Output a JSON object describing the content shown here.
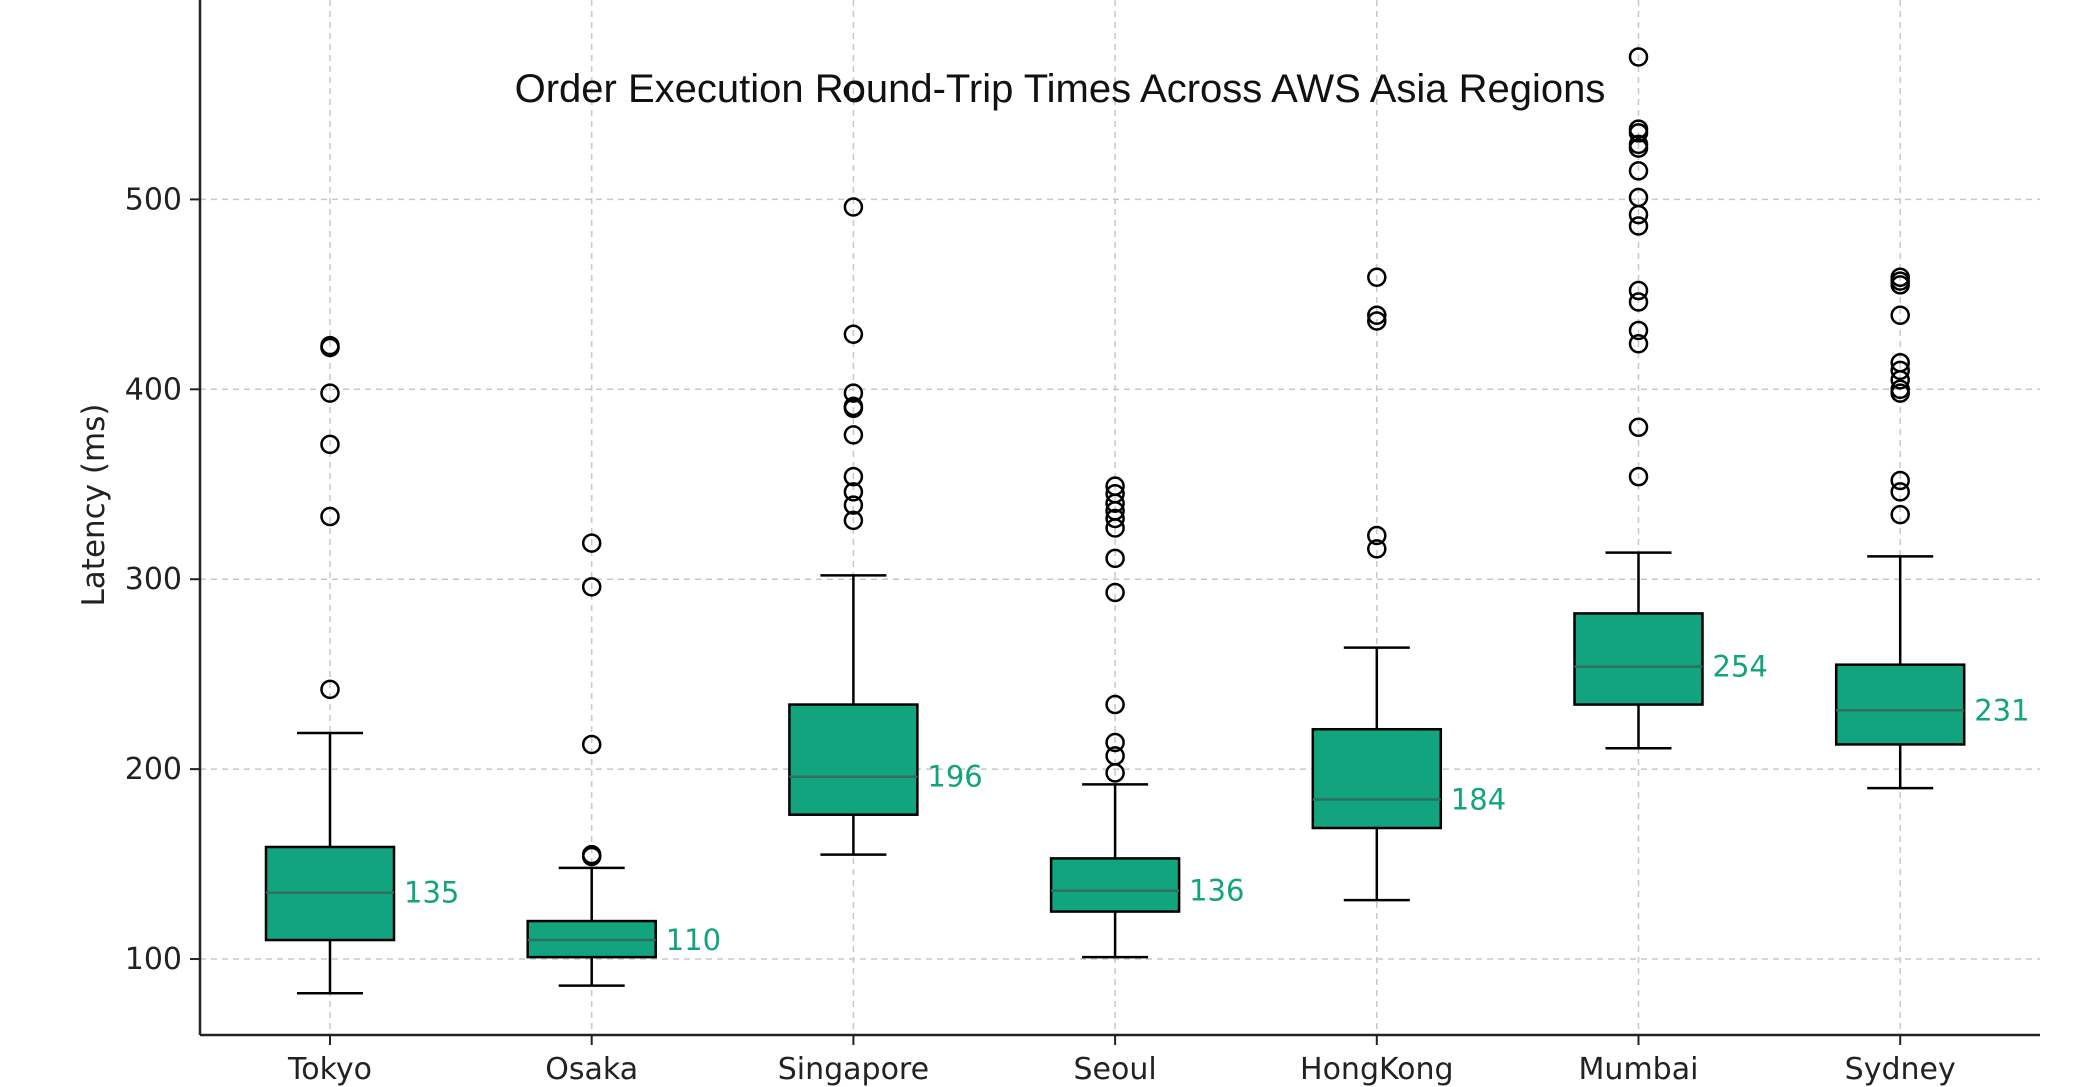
{
  "chart_data": {
    "type": "boxplot",
    "title": "Order Execution Round-Trip Times Across AWS Asia Regions",
    "xlabel": "",
    "ylabel": "Latency (ms)",
    "ylim": [
      60,
      605
    ],
    "yticks": [
      100,
      200,
      300,
      400,
      500
    ],
    "grid": true,
    "box_color": "#12a37f",
    "median_label_color": "#12a37f",
    "categories": [
      "Tokyo",
      "Osaka",
      "Singapore",
      "Seoul",
      "HongKong",
      "Mumbai",
      "Sydney"
    ],
    "series": [
      {
        "category": "Tokyo",
        "whisker_low": 82,
        "q1": 110,
        "median": 135,
        "q3": 159,
        "whisker_high": 219,
        "outliers": [
          242,
          333,
          371,
          398,
          422,
          423
        ]
      },
      {
        "category": "Osaka",
        "whisker_low": 86,
        "q1": 101,
        "median": 110,
        "q3": 120,
        "whisker_high": 148,
        "outliers": [
          154,
          155,
          213,
          296,
          319
        ]
      },
      {
        "category": "Singapore",
        "whisker_low": 155,
        "q1": 176,
        "median": 196,
        "q3": 234,
        "whisker_high": 302,
        "outliers": [
          331,
          339,
          346,
          354,
          376,
          390,
          391,
          398,
          429,
          496,
          557
        ]
      },
      {
        "category": "Seoul",
        "whisker_low": 101,
        "q1": 125,
        "median": 136,
        "q3": 153,
        "whisker_high": 192,
        "outliers": [
          198,
          207,
          214,
          234,
          293,
          311,
          327,
          332,
          336,
          340,
          345,
          349
        ]
      },
      {
        "category": "HongKong",
        "whisker_low": 131,
        "q1": 169,
        "median": 184,
        "q3": 221,
        "whisker_high": 264,
        "outliers": [
          316,
          323,
          436,
          439,
          459
        ]
      },
      {
        "category": "Mumbai",
        "whisker_low": 211,
        "q1": 234,
        "median": 254,
        "q3": 282,
        "whisker_high": 314,
        "outliers": [
          354,
          380,
          424,
          431,
          446,
          452,
          486,
          492,
          501,
          515,
          527,
          529,
          535,
          537,
          575
        ]
      },
      {
        "category": "Sydney",
        "whisker_low": 190,
        "q1": 213,
        "median": 231,
        "q3": 255,
        "whisker_high": 312,
        "outliers": [
          334,
          346,
          352,
          398,
          400,
          405,
          410,
          414,
          439,
          455,
          457,
          459
        ]
      }
    ],
    "median_labels": [
      "135",
      "110",
      "196",
      "136",
      "184",
      "254",
      "231"
    ]
  }
}
